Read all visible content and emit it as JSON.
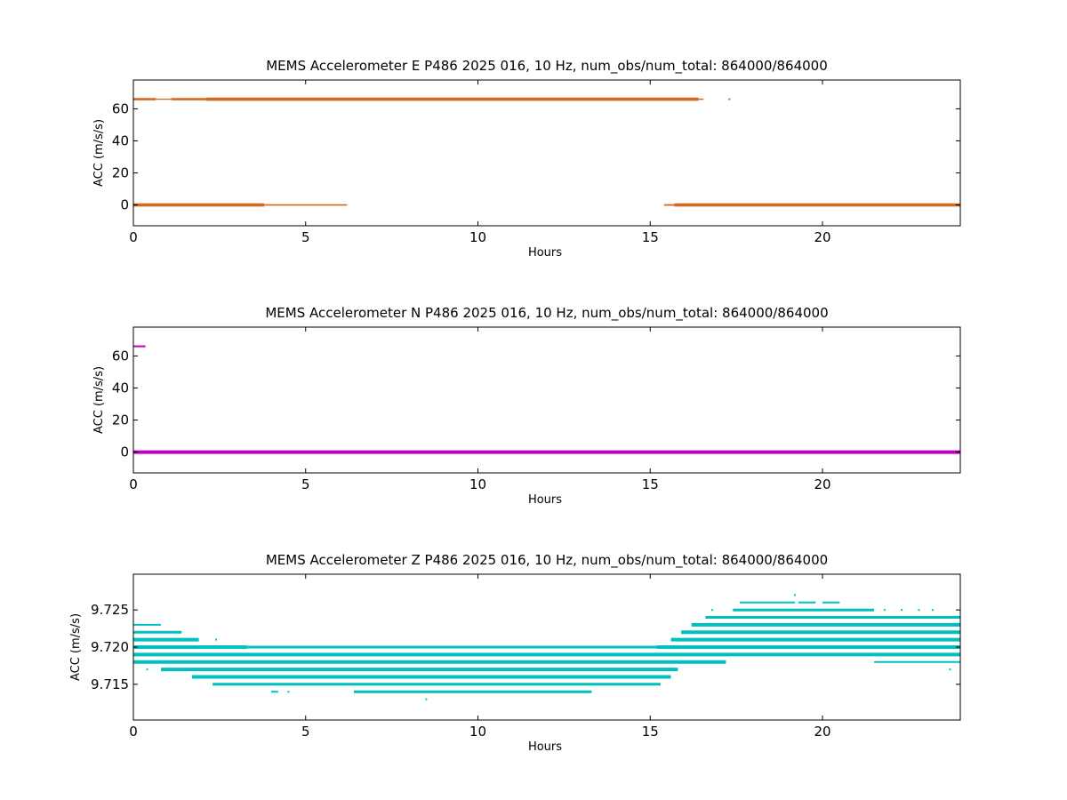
{
  "chart_data": [
    {
      "type": "scatter",
      "title": "MEMS Accelerometer E P486 2025 016, 10 Hz, num_obs/num_total: 864000/864000",
      "xlabel": "Hours",
      "ylabel": "ACC (m/s/s)",
      "xlim": [
        0,
        24
      ],
      "ylim": [
        -13,
        78
      ],
      "xticks": [
        "0",
        "5",
        "10",
        "15",
        "20"
      ],
      "yticks": [
        "0",
        "20",
        "40",
        "60"
      ],
      "color": "#d2691e",
      "series": [
        {
          "level": 66,
          "segments": [
            [
              0.0,
              0.65,
              2.6
            ],
            [
              0.65,
              1.1,
              1.2
            ],
            [
              1.1,
              2.1,
              2.6
            ],
            [
              2.1,
              16.4,
              3.6
            ],
            [
              16.4,
              16.55,
              1.5
            ]
          ],
          "points": [
            17.3
          ]
        },
        {
          "level": 0,
          "segments": [
            [
              0.0,
              3.8,
              3.6
            ],
            [
              3.8,
              6.2,
              1.6
            ],
            [
              15.4,
              15.7,
              1.8
            ],
            [
              15.7,
              24.0,
              3.6
            ]
          ],
          "points": []
        }
      ]
    },
    {
      "type": "scatter",
      "title": "MEMS Accelerometer N P486 2025 016, 10 Hz, num_obs/num_total: 864000/864000",
      "xlabel": "Hours",
      "ylabel": "ACC (m/s/s)",
      "xlim": [
        0,
        24
      ],
      "ylim": [
        -13,
        78
      ],
      "xticks": [
        "0",
        "5",
        "10",
        "15",
        "20"
      ],
      "yticks": [
        "0",
        "20",
        "40",
        "60"
      ],
      "color": "#bf00bf",
      "series": [
        {
          "level": 66,
          "segments": [
            [
              0.0,
              0.35,
              2.0
            ]
          ],
          "points": []
        },
        {
          "level": 0,
          "segments": [
            [
              0.0,
              24.0,
              4.0
            ]
          ],
          "points": []
        }
      ]
    },
    {
      "type": "scatter",
      "title": "MEMS Accelerometer Z P486 2025 016, 10 Hz, num_obs/num_total: 864000/864000",
      "xlabel": "Hours",
      "ylabel": "ACC (m/s/s)",
      "xlim": [
        0,
        24
      ],
      "ylim": [
        9.7102,
        9.7298
      ],
      "xticks": [
        "0",
        "5",
        "10",
        "15",
        "20"
      ],
      "yticks": [
        "9.715",
        "9.720",
        "9.725"
      ],
      "color": "#00bfbf",
      "series": [
        {
          "level": 9.727,
          "segments": [],
          "points": [
            19.2
          ]
        },
        {
          "level": 9.726,
          "segments": [
            [
              17.6,
              19.2,
              2
            ],
            [
              19.3,
              19.8,
              2
            ],
            [
              20.0,
              20.5,
              2
            ]
          ],
          "points": []
        },
        {
          "level": 9.725,
          "segments": [
            [
              17.4,
              21.5,
              3
            ]
          ],
          "points": [
            16.8,
            21.8,
            22.3,
            22.8,
            23.2
          ]
        },
        {
          "level": 9.724,
          "segments": [
            [
              16.6,
              24.0,
              3
            ]
          ],
          "points": []
        },
        {
          "level": 9.723,
          "segments": [
            [
              0.0,
              0.8,
              2
            ],
            [
              16.2,
              24.0,
              4
            ]
          ],
          "points": []
        },
        {
          "level": 9.722,
          "segments": [
            [
              0.0,
              1.4,
              3
            ],
            [
              15.9,
              24.0,
              4
            ]
          ],
          "points": []
        },
        {
          "level": 9.721,
          "segments": [
            [
              0.0,
              1.9,
              4
            ],
            [
              15.6,
              24.0,
              4
            ]
          ],
          "points": [
            2.4
          ]
        },
        {
          "level": 9.72,
          "segments": [
            [
              0.0,
              3.3,
              4
            ],
            [
              3.3,
              15.2,
              3
            ],
            [
              15.2,
              24.0,
              4
            ]
          ],
          "points": []
        },
        {
          "level": 9.719,
          "segments": [
            [
              0.0,
              24.0,
              4
            ]
          ],
          "points": []
        },
        {
          "level": 9.718,
          "segments": [
            [
              0.0,
              17.2,
              4
            ],
            [
              21.5,
              24.0,
              2
            ]
          ],
          "points": []
        },
        {
          "level": 9.717,
          "segments": [
            [
              0.8,
              15.8,
              4
            ]
          ],
          "points": [
            0.4,
            23.7
          ]
        },
        {
          "level": 9.716,
          "segments": [
            [
              1.7,
              15.6,
              4
            ]
          ],
          "points": []
        },
        {
          "level": 9.715,
          "segments": [
            [
              2.3,
              15.3,
              3
            ]
          ],
          "points": []
        },
        {
          "level": 9.714,
          "segments": [
            [
              4.0,
              4.2,
              2
            ],
            [
              6.4,
              13.3,
              3
            ]
          ],
          "points": [
            4.5
          ]
        },
        {
          "level": 9.713,
          "segments": [],
          "points": [
            8.5
          ]
        }
      ]
    }
  ]
}
